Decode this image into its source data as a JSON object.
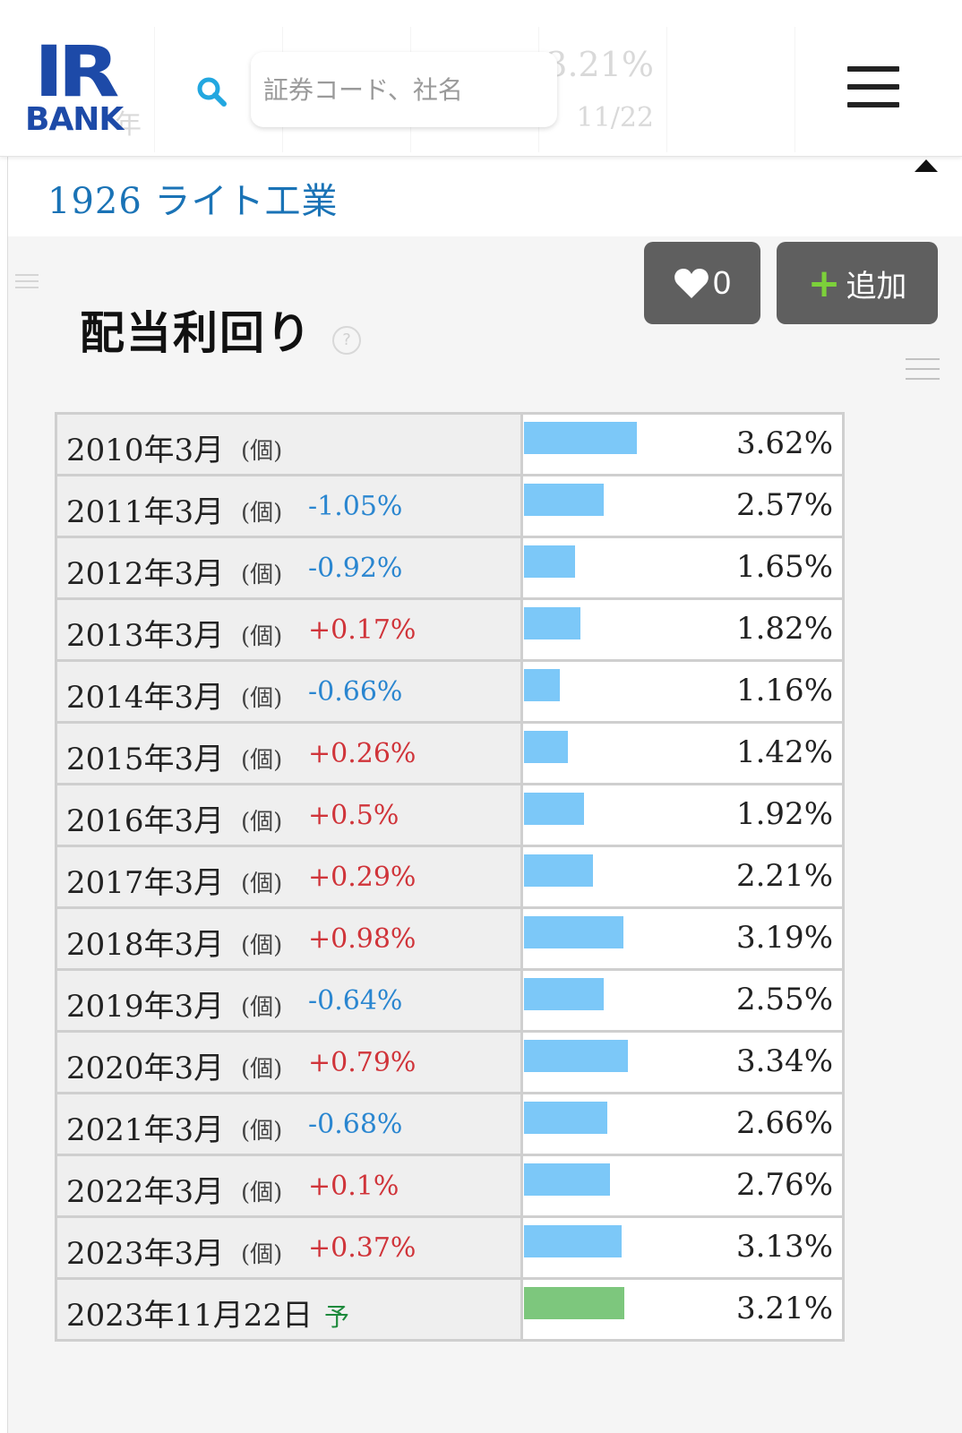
{
  "header": {
    "logo_top": "IR",
    "logo_bottom": "BANK",
    "search_placeholder": "証券コード、社名",
    "ticker_bg": [
      {
        "value": "",
        "date": "年"
      },
      {
        "value": "",
        "date": ""
      },
      {
        "value": "",
        "date": ""
      },
      {
        "value": "",
        "date": ""
      },
      {
        "value": "3.21%",
        "date": "11/22"
      },
      {
        "value": "",
        "date": ""
      }
    ]
  },
  "company": {
    "title": "1926 ライト工業"
  },
  "actions": {
    "like_count": "0",
    "add_label": "追加",
    "add_plus": "+"
  },
  "section": {
    "title": "配当利回り",
    "help": "?"
  },
  "colors": {
    "bar_actual": "#7cc8f8",
    "bar_forecast": "#7dc77d",
    "change_negative": "#2a86d0",
    "change_positive": "#d0343a"
  },
  "table": {
    "rows": [
      {
        "date": "2010年3月",
        "unit": "(個)",
        "change": "",
        "value": "3.62%",
        "yield": 3.62,
        "forecast": false
      },
      {
        "date": "2011年3月",
        "unit": "(個)",
        "change": "-1.05%",
        "value": "2.57%",
        "yield": 2.57,
        "forecast": false
      },
      {
        "date": "2012年3月",
        "unit": "(個)",
        "change": "-0.92%",
        "value": "1.65%",
        "yield": 1.65,
        "forecast": false
      },
      {
        "date": "2013年3月",
        "unit": "(個)",
        "change": "+0.17%",
        "value": "1.82%",
        "yield": 1.82,
        "forecast": false
      },
      {
        "date": "2014年3月",
        "unit": "(個)",
        "change": "-0.66%",
        "value": "1.16%",
        "yield": 1.16,
        "forecast": false
      },
      {
        "date": "2015年3月",
        "unit": "(個)",
        "change": "+0.26%",
        "value": "1.42%",
        "yield": 1.42,
        "forecast": false
      },
      {
        "date": "2016年3月",
        "unit": "(個)",
        "change": "+0.5%",
        "value": "1.92%",
        "yield": 1.92,
        "forecast": false
      },
      {
        "date": "2017年3月",
        "unit": "(個)",
        "change": "+0.29%",
        "value": "2.21%",
        "yield": 2.21,
        "forecast": false
      },
      {
        "date": "2018年3月",
        "unit": "(個)",
        "change": "+0.98%",
        "value": "3.19%",
        "yield": 3.19,
        "forecast": false
      },
      {
        "date": "2019年3月",
        "unit": "(個)",
        "change": "-0.64%",
        "value": "2.55%",
        "yield": 2.55,
        "forecast": false
      },
      {
        "date": "2020年3月",
        "unit": "(個)",
        "change": "+0.79%",
        "value": "3.34%",
        "yield": 3.34,
        "forecast": false
      },
      {
        "date": "2021年3月",
        "unit": "(個)",
        "change": "-0.68%",
        "value": "2.66%",
        "yield": 2.66,
        "forecast": false
      },
      {
        "date": "2022年3月",
        "unit": "(個)",
        "change": "+0.1%",
        "value": "2.76%",
        "yield": 2.76,
        "forecast": false
      },
      {
        "date": "2023年3月",
        "unit": "(個)",
        "change": "+0.37%",
        "value": "3.13%",
        "yield": 3.13,
        "forecast": false
      },
      {
        "date": "2023年11月22日",
        "unit": "",
        "change": "",
        "forecast_mark": "予",
        "value": "3.21%",
        "yield": 3.21,
        "forecast": true
      }
    ]
  }
}
